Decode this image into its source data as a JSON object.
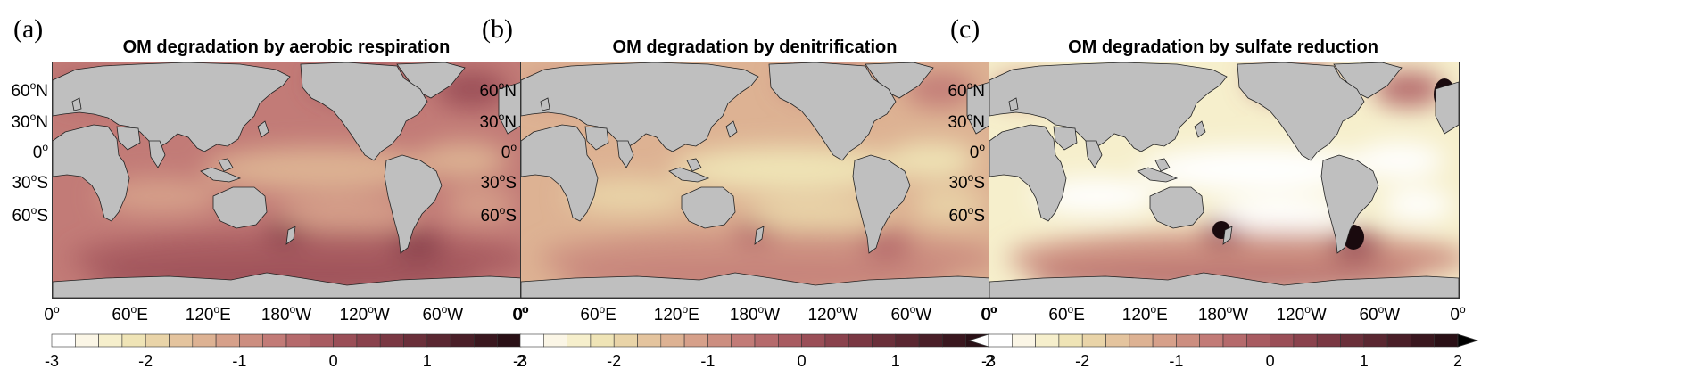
{
  "panels": [
    {
      "label": "(a)",
      "title": "OM degradation by aerobic respiration",
      "intensity": "high",
      "colorbar_extend": false
    },
    {
      "label": "(b)",
      "title": "OM degradation by denitrification",
      "intensity": "medium",
      "colorbar_extend": false
    },
    {
      "label": "(c)",
      "title": "OM degradation by sulfate reduction",
      "intensity": "low",
      "colorbar_extend": true
    }
  ],
  "latitude_labels": [
    {
      "value": "60",
      "hemi": "N"
    },
    {
      "value": "30",
      "hemi": "N"
    },
    {
      "value": "0",
      "hemi": ""
    },
    {
      "value": "30",
      "hemi": "S"
    },
    {
      "value": "60",
      "hemi": "S"
    }
  ],
  "longitude_labels": [
    {
      "value": "0",
      "hemi": ""
    },
    {
      "value": "60",
      "hemi": "E"
    },
    {
      "value": "120",
      "hemi": "E"
    },
    {
      "value": "180",
      "hemi": "W"
    },
    {
      "value": "120",
      "hemi": "W"
    },
    {
      "value": "60",
      "hemi": "W"
    },
    {
      "value": "0",
      "hemi": ""
    }
  ],
  "colorbar": {
    "min": -3,
    "max": 2,
    "ticks": [
      "-3",
      "-2",
      "-1",
      "0",
      "1",
      "2"
    ],
    "n_levels": 20,
    "colors": [
      "#ffffff",
      "#fbf6e6",
      "#f6efcc",
      "#efe4b6",
      "#e9d4a8",
      "#e4c49e",
      "#ddb293",
      "#d6a08a",
      "#cc8e80",
      "#c27b77",
      "#b56a6c",
      "#a85b61",
      "#9a4e57",
      "#8a424d",
      "#7a3843",
      "#6a2f3a",
      "#5a2731",
      "#4a1f28",
      "#3a171f",
      "#2a1016"
    ]
  },
  "colors": {
    "land": "#bfbfbf",
    "frame": "#333333"
  }
}
